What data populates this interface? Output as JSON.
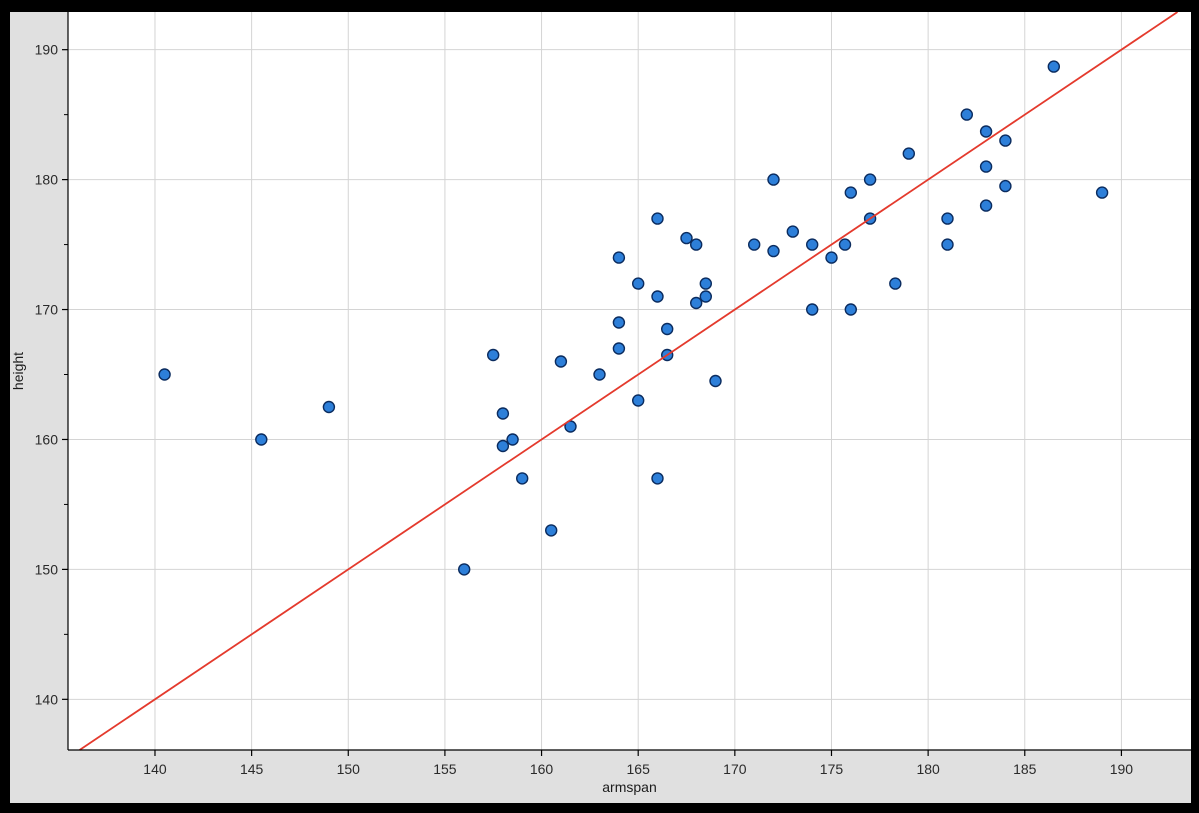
{
  "chart_data": {
    "type": "scatter",
    "title": "",
    "xlabel": "armspan",
    "ylabel": "height",
    "xlim": [
      135.5,
      193.6
    ],
    "ylim": [
      136.1,
      192.9
    ],
    "x_ticks": [
      140,
      145,
      150,
      155,
      160,
      165,
      170,
      175,
      180,
      185,
      190
    ],
    "y_ticks_major": [
      140,
      150,
      160,
      170,
      180,
      190
    ],
    "y_ticks_minor": [
      145,
      155,
      165,
      175,
      185
    ],
    "grid": true,
    "legend": "none",
    "line": {
      "type": "identity",
      "slope": 1,
      "intercept": 0,
      "x1": 136.1,
      "y1": 136.1,
      "x2": 192.9,
      "y2": 192.9
    },
    "points": [
      [
        140.5,
        165
      ],
      [
        145.5,
        160
      ],
      [
        149,
        162.5
      ],
      [
        156,
        150
      ],
      [
        157.5,
        166.5
      ],
      [
        158,
        162
      ],
      [
        158.5,
        160
      ],
      [
        158,
        159.5
      ],
      [
        159,
        157
      ],
      [
        160.5,
        153
      ],
      [
        161,
        166
      ],
      [
        161.5,
        161
      ],
      [
        163,
        165
      ],
      [
        164,
        174
      ],
      [
        164,
        169
      ],
      [
        164,
        167
      ],
      [
        165,
        172
      ],
      [
        165,
        163
      ],
      [
        166,
        177
      ],
      [
        166,
        171
      ],
      [
        166,
        157
      ],
      [
        166.5,
        168.5
      ],
      [
        166.5,
        166.5
      ],
      [
        167.5,
        175.5
      ],
      [
        168,
        175
      ],
      [
        168,
        170.5
      ],
      [
        168.5,
        172
      ],
      [
        168.5,
        171
      ],
      [
        169,
        164.5
      ],
      [
        171,
        175
      ],
      [
        172,
        180
      ],
      [
        172,
        174.5
      ],
      [
        173,
        176
      ],
      [
        174,
        175
      ],
      [
        174,
        170
      ],
      [
        175,
        174
      ],
      [
        175.7,
        175
      ],
      [
        176,
        179
      ],
      [
        176,
        170
      ],
      [
        177,
        180
      ],
      [
        177,
        177
      ],
      [
        178.3,
        172
      ],
      [
        179,
        182
      ],
      [
        181,
        177
      ],
      [
        181,
        175
      ],
      [
        182,
        185
      ],
      [
        183,
        183.7
      ],
      [
        183,
        181
      ],
      [
        183,
        178
      ],
      [
        184,
        183
      ],
      [
        184,
        179.5
      ],
      [
        186.5,
        188.7
      ],
      [
        189,
        179
      ]
    ],
    "colors": {
      "frame": "#000000",
      "figure_bg": "#e0e0e0",
      "plot_bg": "#ffffff",
      "grid": "#d4d4d4",
      "spine": "#000000",
      "tick": "#000000",
      "tick_label": "#2a2a2a",
      "point_fill": "#2d7fd9",
      "point_edge": "#0b2c5f",
      "line": "#e43a2d"
    }
  }
}
